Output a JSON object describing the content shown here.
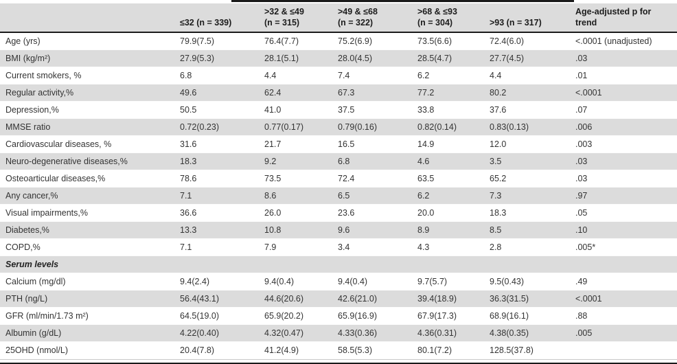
{
  "colors": {
    "stripe_gray": "#dcdcdc",
    "header_bg": "#dcdcdc",
    "rule_black": "#1a1a1a",
    "text": "#333333"
  },
  "table": {
    "columns": [
      {
        "lines": [
          ""
        ]
      },
      {
        "lines": [
          "≤32 (n = 339)"
        ]
      },
      {
        "lines": [
          ">32 & ≤49",
          "(n = 315)"
        ]
      },
      {
        "lines": [
          ">49 & ≤68",
          "(n = 322)"
        ]
      },
      {
        "lines": [
          ">68 & ≤93",
          "(n = 304)"
        ]
      },
      {
        "lines": [
          ">93 (n = 317)"
        ]
      },
      {
        "lines": [
          "Age-adjusted p for",
          "trend"
        ]
      }
    ],
    "rows": [
      {
        "label": "Age (yrs)",
        "values": [
          "79.9(7.5)",
          "76.4(7.7)",
          "75.2(6.9)",
          "73.5(6.6)",
          "72.4(6.0)",
          "<.0001 (unadjusted)"
        ]
      },
      {
        "label": "BMI (kg/m²)",
        "values": [
          "27.9(5.3)",
          "28.1(5.1)",
          "28.0(4.5)",
          "28.5(4.7)",
          "27.7(4.5)",
          ".03"
        ]
      },
      {
        "label": "Current smokers, %",
        "values": [
          "6.8",
          "4.4",
          "7.4",
          "6.2",
          "4.4",
          ".01"
        ]
      },
      {
        "label": "Regular activity,%",
        "values": [
          "49.6",
          "62.4",
          "67.3",
          "77.2",
          "80.2",
          "<.0001"
        ]
      },
      {
        "label": "Depression,%",
        "values": [
          "50.5",
          "41.0",
          "37.5",
          "33.8",
          "37.6",
          ".07"
        ]
      },
      {
        "label": "MMSE ratio",
        "values": [
          "0.72(0.23)",
          "0.77(0.17)",
          "0.79(0.16)",
          "0.82(0.14)",
          "0.83(0.13)",
          ".006"
        ]
      },
      {
        "label": "Cardiovascular diseases, %",
        "values": [
          "31.6",
          "21.7",
          "16.5",
          "14.9",
          "12.0",
          ".003"
        ]
      },
      {
        "label": "Neuro-degenerative diseases,%",
        "values": [
          "18.3",
          "9.2",
          "6.8",
          "4.6",
          "3.5",
          ".03"
        ]
      },
      {
        "label": "Osteoarticular diseases,%",
        "values": [
          "78.6",
          "73.5",
          "72.4",
          "63.5",
          "65.2",
          ".03"
        ]
      },
      {
        "label": "Any cancer,%",
        "values": [
          "7.1",
          "8.6",
          "6.5",
          "6.2",
          "7.3",
          ".97"
        ]
      },
      {
        "label": "Visual impairments,%",
        "values": [
          "36.6",
          "26.0",
          "23.6",
          "20.0",
          "18.3",
          ".05"
        ]
      },
      {
        "label": "Diabetes,%",
        "values": [
          "13.3",
          "10.8",
          "9.6",
          "8.9",
          "8.5",
          ".10"
        ]
      },
      {
        "label": "COPD,%",
        "values": [
          "7.1",
          "7.9",
          "3.4",
          "4.3",
          "2.8",
          ".005*"
        ]
      },
      {
        "label": "Serum levels",
        "section": true,
        "values": [
          "",
          "",
          "",
          "",
          "",
          ""
        ]
      },
      {
        "label": "Calcium (mg/dl)",
        "values": [
          "9.4(2.4)",
          "9.4(0.4)",
          "9.4(0.4)",
          "9.7(5.7)",
          "9.5(0.43)",
          ".49"
        ]
      },
      {
        "label": "PTH (ng/L)",
        "values": [
          "56.4(43.1)",
          "44.6(20.6)",
          "42.6(21.0)",
          "39.4(18.9)",
          "36.3(31.5)",
          "<.0001"
        ]
      },
      {
        "label": "GFR (ml/min/1.73 m²)",
        "values": [
          "64.5(19.0)",
          "65.9(20.2)",
          "65.9(16.9)",
          "67.9(17.3)",
          "68.9(16.1)",
          ".88"
        ]
      },
      {
        "label": "Albumin (g/dL)",
        "values": [
          "4.22(0.40)",
          "4.32(0.47)",
          "4.33(0.36)",
          "4.36(0.31)",
          "4.38(0.35)",
          ".005"
        ]
      },
      {
        "label": "25OHD (nmol/L)",
        "values": [
          "20.4(7.8)",
          "41.2(4.9)",
          "58.5(5.3)",
          "80.1(7.2)",
          "128.5(37.8)",
          ""
        ]
      }
    ]
  }
}
